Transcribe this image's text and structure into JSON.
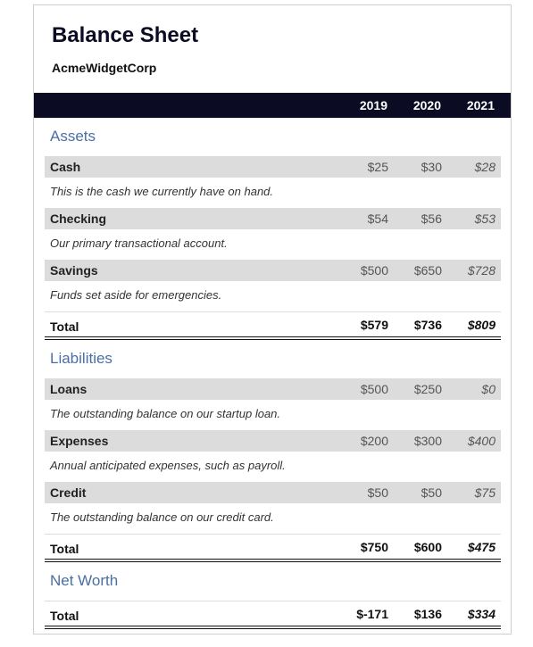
{
  "header": {
    "title": "Balance Sheet",
    "subtitle": "AcmeWidgetCorp"
  },
  "table": {
    "columns": [
      "2019",
      "2020",
      "2021"
    ],
    "sections": [
      {
        "name": "Assets",
        "rows": [
          {
            "label": "Cash",
            "values": [
              "$25",
              "$30",
              "$28"
            ],
            "description": "This is the cash we currently have on hand."
          },
          {
            "label": "Checking",
            "values": [
              "$54",
              "$56",
              "$53"
            ],
            "description": "Our primary transactional account."
          },
          {
            "label": "Savings",
            "values": [
              "$500",
              "$650",
              "$728"
            ],
            "description": "Funds set aside for emergencies."
          }
        ],
        "total": {
          "label": "Total",
          "values": [
            "$579",
            "$736",
            "$809"
          ]
        }
      },
      {
        "name": "Liabilities",
        "rows": [
          {
            "label": "Loans",
            "values": [
              "$500",
              "$250",
              "$0"
            ],
            "description": "The outstanding balance on our startup loan."
          },
          {
            "label": "Expenses",
            "values": [
              "$200",
              "$300",
              "$400"
            ],
            "description": "Annual anticipated expenses, such as payroll."
          },
          {
            "label": "Credit",
            "values": [
              "$50",
              "$50",
              "$75"
            ],
            "description": "The outstanding balance on our credit card."
          }
        ],
        "total": {
          "label": "Total",
          "values": [
            "$750",
            "$600",
            "$475"
          ]
        }
      },
      {
        "name": "Net Worth",
        "rows": [],
        "total": {
          "label": "Total",
          "values": [
            "$-171",
            "$136",
            "$334"
          ]
        }
      }
    ]
  }
}
